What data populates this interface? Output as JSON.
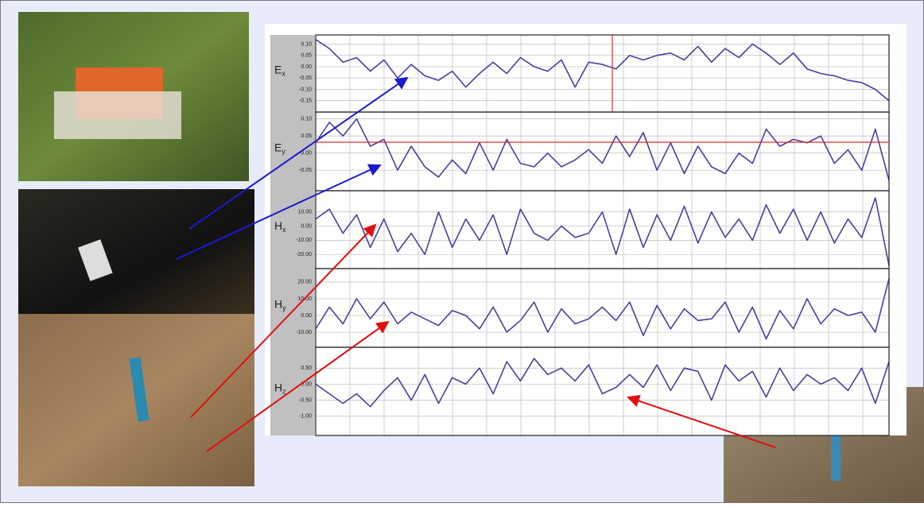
{
  "chart_data": [
    {
      "type": "line",
      "symbol": "E",
      "subscript": "x",
      "color": "#4b3f9f",
      "ylim": [
        -0.2,
        0.14
      ],
      "yticks": [
        {
          "value": 0.1,
          "label": "0.10"
        },
        {
          "value": 0.05,
          "label": "0.05"
        },
        {
          "value": 0,
          "label": "0.00"
        },
        {
          "value": -0.05,
          "label": "-0.05"
        },
        {
          "value": -0.1,
          "label": "-0.10"
        },
        {
          "value": -0.15,
          "label": "-0.15"
        }
      ],
      "values": [
        0.12,
        0.08,
        0.02,
        0.04,
        -0.02,
        0.03,
        -0.05,
        0.01,
        -0.04,
        -0.06,
        -0.02,
        -0.09,
        -0.03,
        0.02,
        -0.03,
        0.04,
        0.0,
        -0.02,
        0.03,
        -0.09,
        0.02,
        0.01,
        -0.01,
        0.05,
        0.03,
        0.05,
        0.06,
        0.03,
        0.09,
        0.02,
        0.08,
        0.04,
        0.1,
        0.06,
        0.01,
        0.06,
        -0.01,
        -0.03,
        -0.04,
        -0.06,
        -0.07,
        -0.1,
        -0.15
      ]
    },
    {
      "type": "line",
      "symbol": "E",
      "subscript": "y",
      "color": "#4b3f9f",
      "ylim": [
        -0.11,
        0.12
      ],
      "yticks": [
        {
          "value": 0.1,
          "label": "0.10"
        },
        {
          "value": 0.05,
          "label": "0.05"
        },
        {
          "value": 0,
          "label": "0.00"
        },
        {
          "value": -0.05,
          "label": "-0.05"
        }
      ],
      "values": [
        0.03,
        0.09,
        0.05,
        0.1,
        0.02,
        0.04,
        -0.05,
        0.02,
        -0.04,
        -0.07,
        -0.02,
        -0.06,
        0.03,
        -0.05,
        0.04,
        -0.03,
        -0.04,
        0.0,
        -0.04,
        -0.02,
        0.01,
        -0.03,
        0.05,
        -0.01,
        0.06,
        -0.05,
        0.03,
        -0.06,
        0.02,
        -0.04,
        -0.06,
        0.0,
        -0.03,
        0.07,
        0.02,
        0.04,
        0.03,
        0.05,
        -0.03,
        0.01,
        -0.05,
        0.07,
        -0.08
      ]
    },
    {
      "type": "line",
      "symbol": "H",
      "subscript": "x",
      "color": "#4b3f9f",
      "ylim": [
        -30,
        25
      ],
      "yticks": [
        {
          "value": 10,
          "label": "10.00"
        },
        {
          "value": 0,
          "label": "0.00"
        },
        {
          "value": -10,
          "label": "-10.00"
        },
        {
          "value": -20,
          "label": "-20.00"
        }
      ],
      "values": [
        5,
        12,
        -5,
        8,
        -15,
        5,
        -18,
        -5,
        -20,
        10,
        -15,
        5,
        -10,
        8,
        -20,
        12,
        -5,
        -10,
        0,
        -8,
        -5,
        10,
        -20,
        12,
        -15,
        8,
        -10,
        14,
        -12,
        10,
        -8,
        5,
        -10,
        15,
        -5,
        12,
        -10,
        10,
        -12,
        5,
        -8,
        20,
        -28
      ]
    },
    {
      "type": "line",
      "symbol": "H",
      "subscript": "y",
      "color": "#4b3f9f",
      "ylim": [
        -19,
        28
      ],
      "yticks": [
        {
          "value": 20,
          "label": "20.00"
        },
        {
          "value": 10,
          "label": "10.00"
        },
        {
          "value": 0,
          "label": "0.00"
        },
        {
          "value": -10,
          "label": "-10.00"
        }
      ],
      "values": [
        -8,
        5,
        -5,
        10,
        -2,
        8,
        -5,
        2,
        -2,
        -6,
        3,
        0,
        -8,
        5,
        -10,
        -3,
        8,
        -10,
        4,
        -5,
        -2,
        5,
        -3,
        8,
        -12,
        6,
        -8,
        4,
        -3,
        -2,
        8,
        -10,
        5,
        -14,
        3,
        -8,
        10,
        -5,
        4,
        0,
        2,
        -10,
        22
      ]
    },
    {
      "type": "line",
      "symbol": "H",
      "subscript": "z",
      "color": "#4b3f9f",
      "ylim": [
        -1.6,
        1.15
      ],
      "yticks": [
        {
          "value": 0.5,
          "label": "0.50"
        },
        {
          "value": 0,
          "label": "0.00"
        },
        {
          "value": -0.5,
          "label": "-0.50"
        },
        {
          "value": -1,
          "label": "-1.00"
        }
      ],
      "values": [
        0,
        -0.3,
        -0.6,
        -0.3,
        -0.7,
        -0.2,
        0.2,
        -0.5,
        0.3,
        -0.6,
        0.2,
        0.0,
        0.5,
        -0.3,
        0.7,
        0.1,
        0.8,
        0.3,
        0.5,
        0.1,
        0.6,
        -0.3,
        -0.1,
        0.3,
        -0.1,
        0.6,
        -0.2,
        0.5,
        0.4,
        -0.5,
        0.6,
        0.1,
        0.4,
        -0.4,
        0.5,
        -0.2,
        0.3,
        0.0,
        0.2,
        -0.2,
        0.5,
        -0.6,
        0.7
      ]
    }
  ]
}
